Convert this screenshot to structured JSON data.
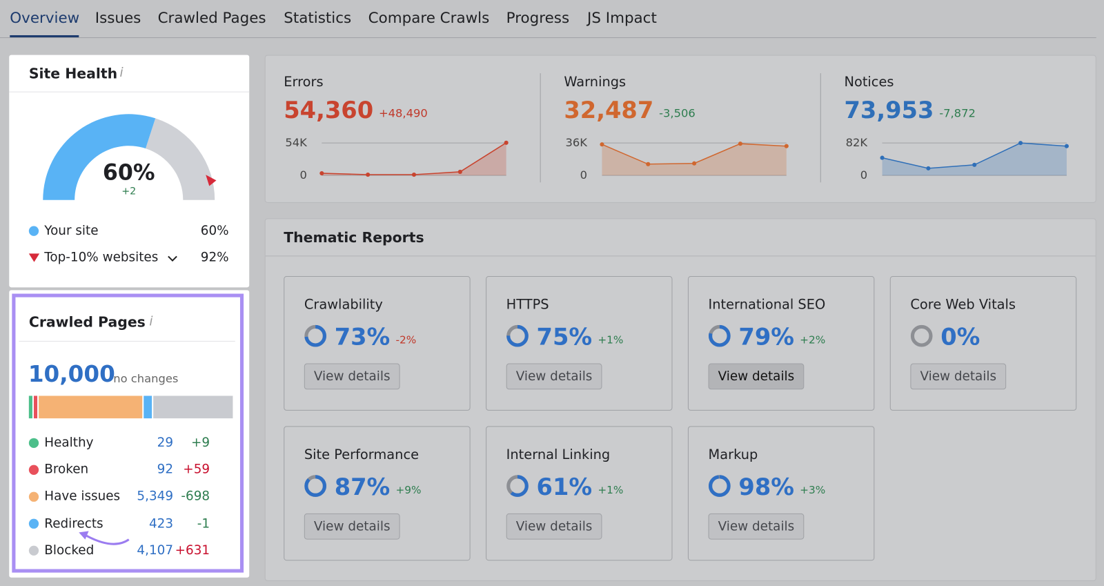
{
  "tabs": [
    "Overview",
    "Issues",
    "Crawled Pages",
    "Statistics",
    "Compare Crawls",
    "Progress",
    "JS Impact"
  ],
  "site_health": {
    "title": "Site Health",
    "score": {
      "value": 60,
      "label": "60%"
    },
    "change": "+2",
    "legend": [
      {
        "label": "Your site",
        "value": {
          "value": 60,
          "label": "60%"
        },
        "color": "#59b3f5"
      },
      {
        "label": "Top-10% websites",
        "value": {
          "value": 92,
          "label": "92%"
        },
        "color": "#d62a3a"
      }
    ]
  },
  "crawled_pages": {
    "title": "Crawled Pages",
    "total": "10,000",
    "change": "no changes",
    "rows": [
      {
        "label": "Healthy",
        "count": 29,
        "change": "+9",
        "color": "#4cbf8a",
        "change_color": "#2e7d4f"
      },
      {
        "label": "Broken",
        "count": 92,
        "change": "+59",
        "color": "#e8505b",
        "change_color": "#c8102e"
      },
      {
        "label": "Have issues",
        "count": {
          "value": 5349,
          "label": "5,349"
        },
        "change": "-698",
        "color": "#f5b274",
        "change_color": "#2e7d4f"
      },
      {
        "label": "Redirects",
        "count": 423,
        "change": "-1",
        "color": "#59b3f5",
        "change_color": "#2e7d4f"
      },
      {
        "label": "Blocked",
        "count": {
          "value": 4107,
          "label": "4,107"
        },
        "change": "+631",
        "color": "#c9cbd0",
        "change_color": "#c8102e"
      }
    ]
  },
  "issues": [
    {
      "label": "Errors",
      "total": "54,360",
      "change": "+48,490",
      "color": "#c8442f",
      "change_color": "#c0392b",
      "ylim": [
        0,
        54000
      ],
      "yticks": [
        {
          "value": 54000,
          "label": "54K"
        },
        0
      ],
      "values": [
        3500,
        1200,
        1200,
        5900,
        54360
      ]
    },
    {
      "label": "Warnings",
      "total": "32,487",
      "change": "-3,506",
      "color": "#d0672f",
      "change_color": "#2e7d4f",
      "ylim": [
        0,
        36000
      ],
      "yticks": [
        {
          "value": 36000,
          "label": "36K"
        },
        0
      ],
      "values": [
        34400,
        12500,
        13300,
        35200,
        32487
      ]
    },
    {
      "label": "Notices",
      "total": "73,953",
      "change": "-7,872",
      "color": "#2f6fb8",
      "change_color": "#2e7d4f",
      "ylim": [
        0,
        82000
      ],
      "yticks": [
        {
          "value": 82000,
          "label": "82K"
        },
        0
      ],
      "values": [
        44500,
        17800,
        26700,
        82000,
        73953
      ]
    }
  ],
  "thematic_reports": {
    "title": "Thematic Reports",
    "button": "View details",
    "reports": [
      {
        "name": "Crawlability",
        "score": {
          "value": 73,
          "label": "73%"
        },
        "change": "-2%",
        "change_color": "#c0392b"
      },
      {
        "name": "HTTPS",
        "score": {
          "value": 75,
          "label": "75%"
        },
        "change": "+1%",
        "change_color": "#2e7d4f"
      },
      {
        "name": "International SEO",
        "score": {
          "value": 79,
          "label": "79%"
        },
        "change": "+2%",
        "change_color": "#2e7d4f"
      },
      {
        "name": "Core Web Vitals",
        "score": {
          "value": 0,
          "label": "0%"
        }
      },
      {
        "name": "Site Performance",
        "score": {
          "value": 87,
          "label": "87%"
        },
        "change": "+9%",
        "change_color": "#2e7d4f"
      },
      {
        "name": "Internal Linking",
        "score": {
          "value": 61,
          "label": "61%"
        },
        "change": "+1%",
        "change_color": "#2e7d4f"
      },
      {
        "name": "Markup",
        "score": {
          "value": 98,
          "label": "98%"
        },
        "change": "+3%",
        "change_color": "#2e7d4f"
      }
    ]
  }
}
